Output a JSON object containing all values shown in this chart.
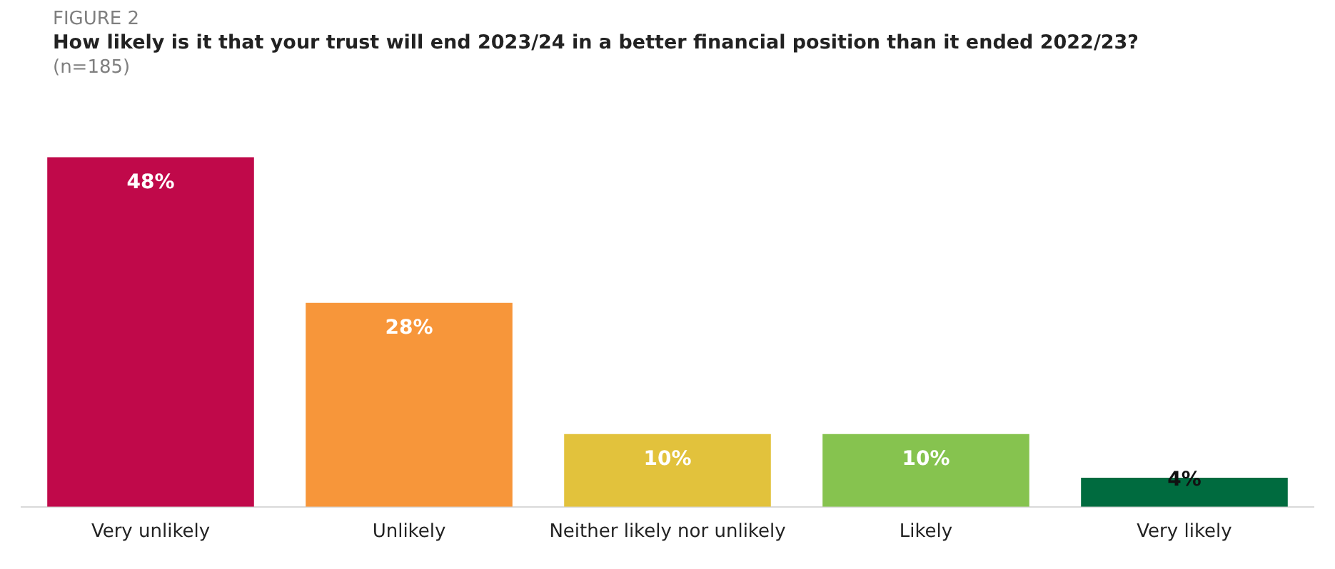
{
  "chart_data": {
    "type": "bar",
    "title": "How likely is it that your trust will end 2023/24 in a better financial position than it ended 2022/23?",
    "subtitle": "(n=185)",
    "annotations": [
      "FIGURE 2"
    ],
    "categories": [
      "Very unlikely",
      "Unlikely",
      "Neither likely nor unlikely",
      "Likely",
      "Very likely"
    ],
    "values": [
      48,
      28,
      10,
      10,
      4
    ],
    "colors": [
      "#c0094a",
      "#f7963a",
      "#e2c23c",
      "#86c34f",
      "#006b3f"
    ],
    "value_labels": [
      "48%",
      "28%",
      "10%",
      "10%",
      "4%"
    ],
    "legend": false,
    "grid": false,
    "tick_labels": "x"
  }
}
